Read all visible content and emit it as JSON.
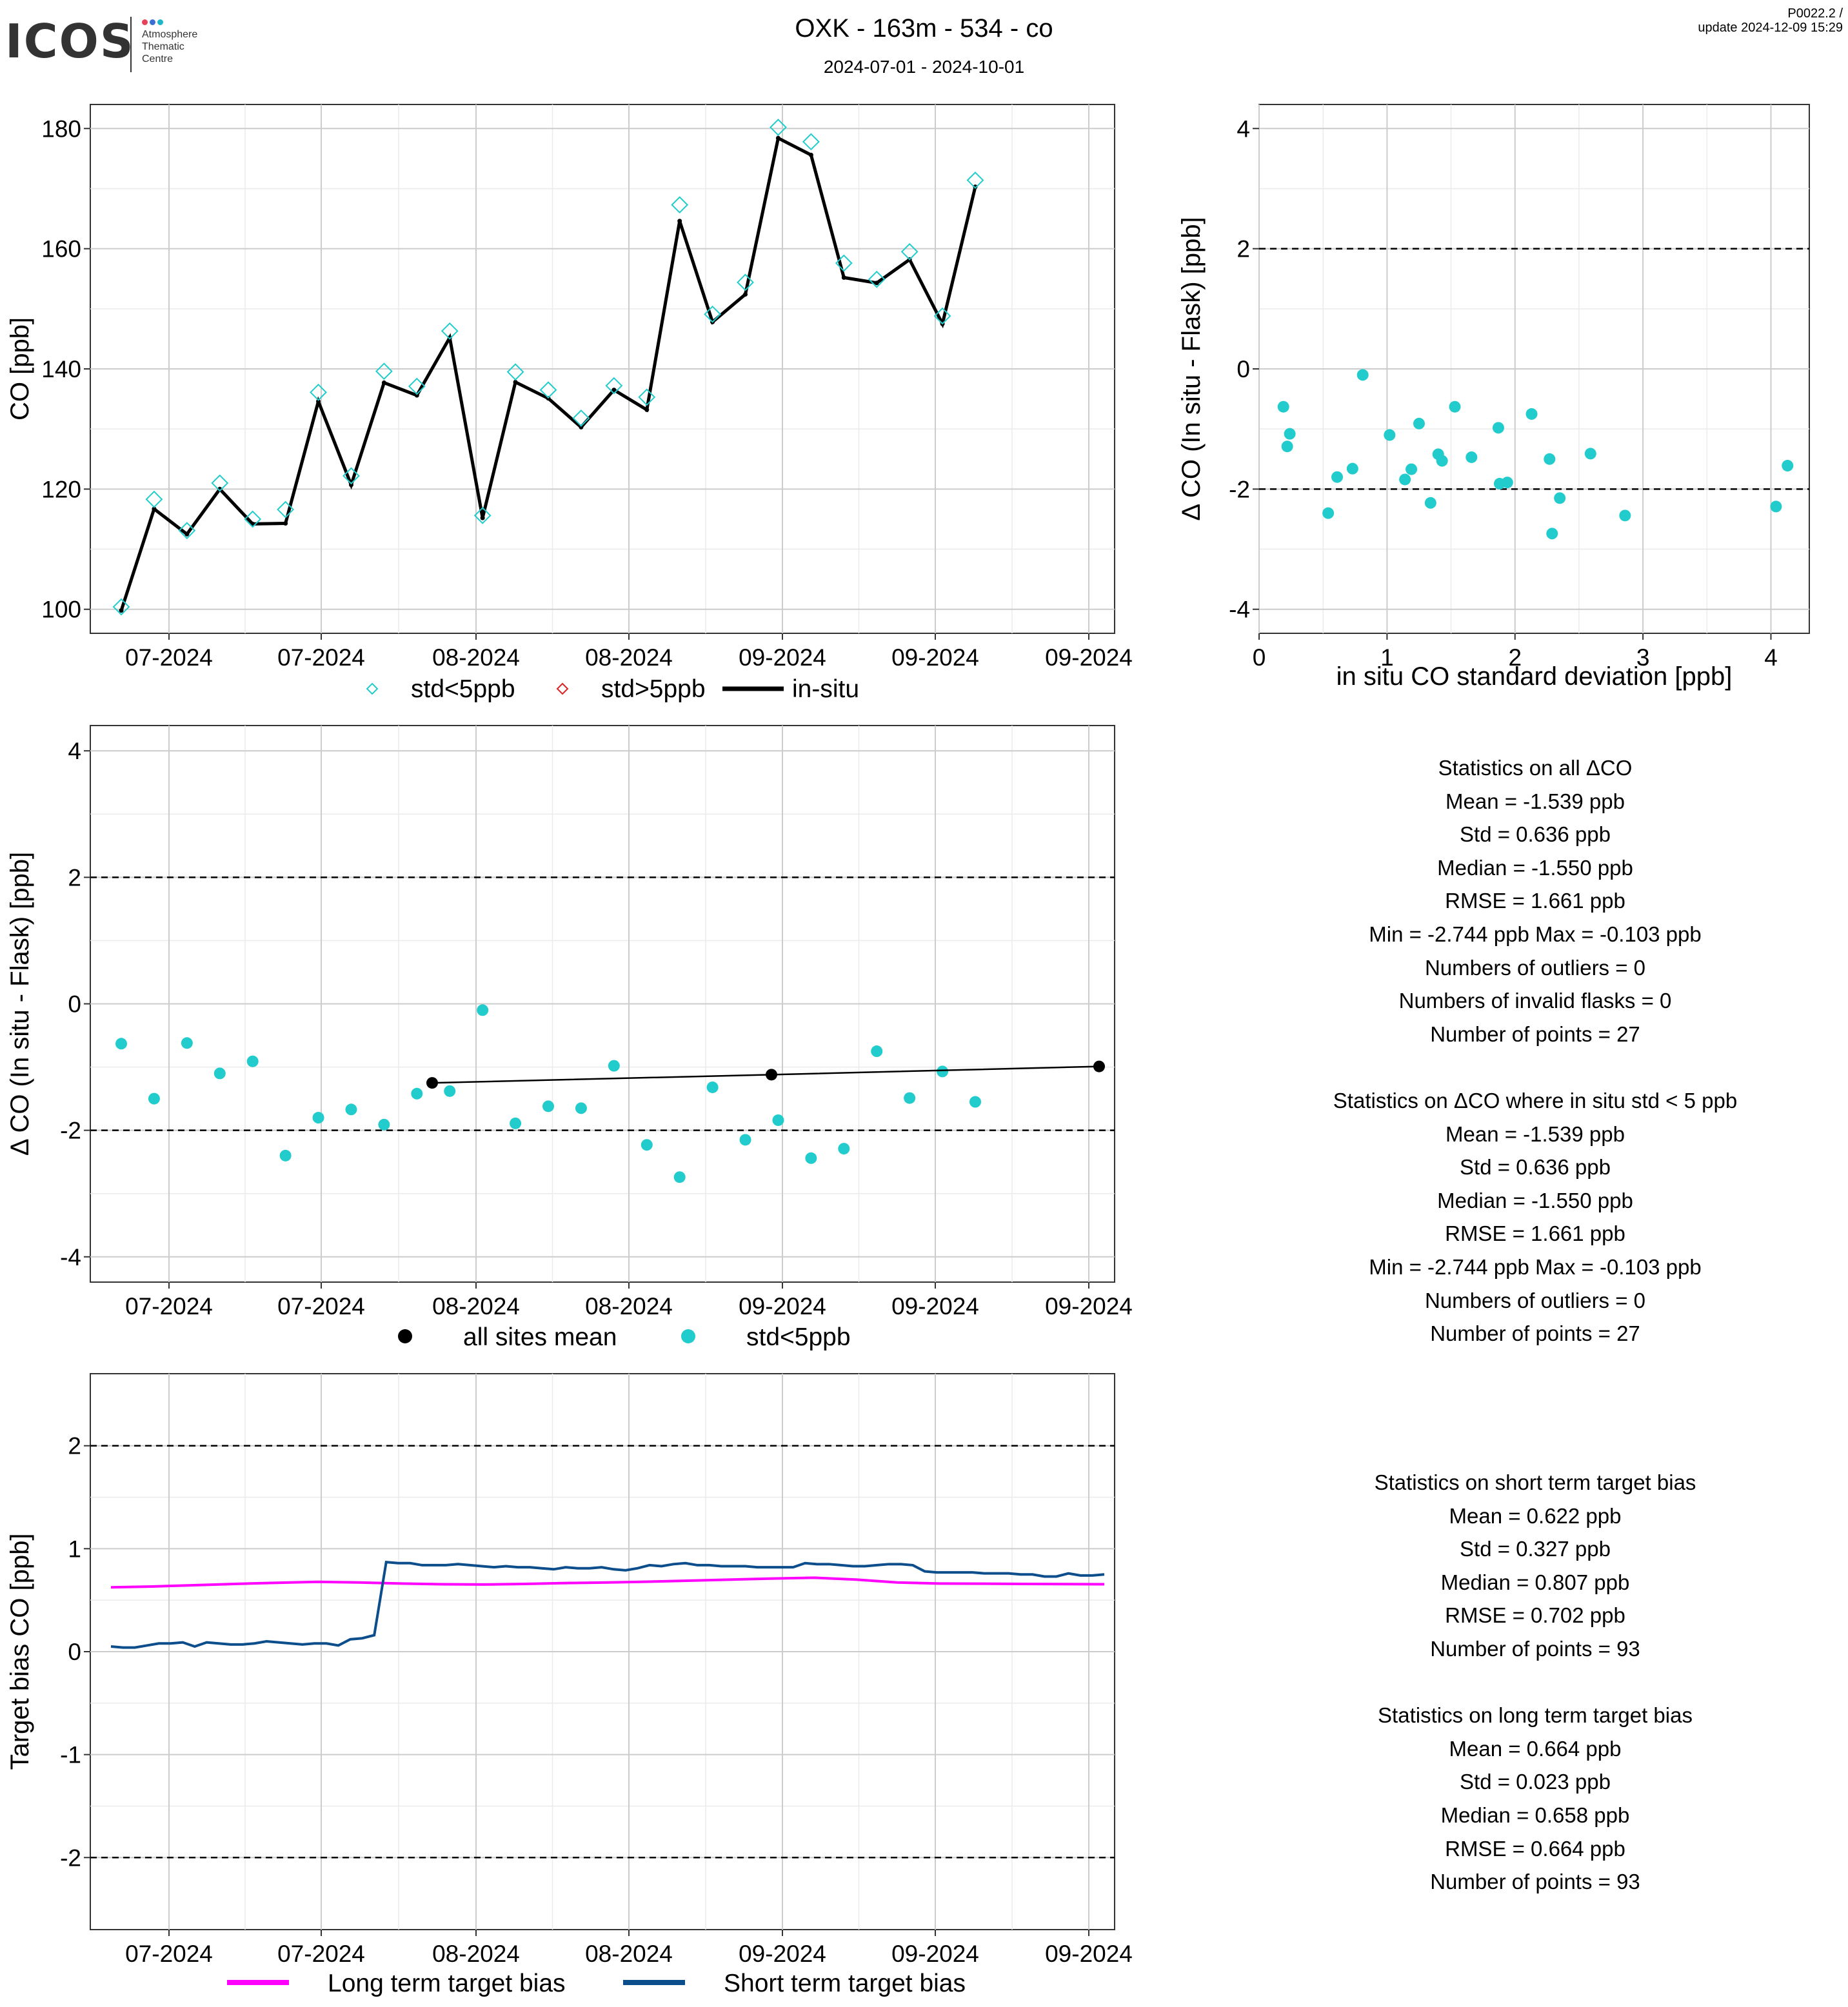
{
  "header": {
    "logo_text": "ICOS",
    "logo_sub": [
      "Atmosphere",
      "Thematic",
      "Centre"
    ],
    "logo_colors": [
      "#e8415c",
      "#3b6fd6",
      "#1cb5c9"
    ],
    "title": "OXK - 163m - 534 - co",
    "date_range": "2024-07-01 - 2024-10-01",
    "version": "P0022.2 /",
    "update": "update  2024-12-09 15:29"
  },
  "colors": {
    "cyan": "#22cccc",
    "red": "#dd2222",
    "black": "#000000",
    "magenta": "#ff00ff",
    "navy": "#0c4d8c",
    "grid_major": "#cccccc",
    "grid_minor": "#ebebeb"
  },
  "chart_data": [
    {
      "id": "timeseries",
      "type": "line",
      "ylabel": "CO [ppb]",
      "xlabel": "",
      "x_tick_labels": [
        "07-2024",
        "07-2024",
        "08-2024",
        "08-2024",
        "09-2024",
        "09-2024",
        "09-2024"
      ],
      "y_ticks": [
        100,
        120,
        140,
        160,
        180
      ],
      "ylim": [
        96,
        184
      ],
      "legend": [
        "std<5ppb",
        "std>5ppb",
        "in-situ"
      ],
      "legend_position": "bottom",
      "series": [
        {
          "name": "std<5ppb",
          "marker": "diamond",
          "values": [
            100.4,
            118.3,
            113.1,
            121.0,
            115.0,
            116.6,
            136.1,
            122.2,
            139.6,
            137.1,
            146.3,
            115.6,
            139.5,
            136.5,
            131.8,
            137.2,
            135.3,
            167.3,
            149.1,
            154.4,
            180.2,
            177.8,
            157.6,
            154.9,
            159.5,
            148.8,
            171.4
          ]
        },
        {
          "name": "in-situ",
          "values": [
            99.8,
            116.7,
            112.5,
            120.0,
            114.2,
            114.3,
            134.6,
            120.7,
            137.7,
            135.6,
            145.2,
            115.2,
            137.8,
            135.1,
            130.3,
            136.5,
            133.2,
            164.6,
            147.8,
            152.4,
            178.4,
            175.6,
            155.2,
            154.3,
            158.2,
            147.5,
            170.3
          ]
        }
      ]
    },
    {
      "id": "delta_vs_std",
      "type": "scatter",
      "xlabel": "in situ CO standard deviation [ppb]",
      "ylabel": "Δ CO (In situ - Flask) [ppb]",
      "x_ticks": [
        0,
        1,
        2,
        3,
        4
      ],
      "y_ticks": [
        -4,
        -2,
        0,
        2,
        4
      ],
      "xlim": [
        0,
        4.3
      ],
      "ylim": [
        -4.4,
        4.4
      ],
      "reference_lines": [
        2,
        -2
      ],
      "points": [
        [
          0.19,
          -0.63
        ],
        [
          0.22,
          -1.29
        ],
        [
          0.24,
          -1.08
        ],
        [
          0.54,
          -2.4
        ],
        [
          0.61,
          -1.8
        ],
        [
          0.73,
          -1.66
        ],
        [
          0.81,
          -0.1
        ],
        [
          1.02,
          -1.1
        ],
        [
          1.14,
          -1.84
        ],
        [
          1.19,
          -1.67
        ],
        [
          1.25,
          -0.91
        ],
        [
          1.34,
          -2.23
        ],
        [
          1.4,
          -1.42
        ],
        [
          1.43,
          -1.53
        ],
        [
          1.53,
          -0.63
        ],
        [
          1.66,
          -1.47
        ],
        [
          1.87,
          -0.98
        ],
        [
          1.88,
          -1.91
        ],
        [
          1.94,
          -1.89
        ],
        [
          2.13,
          -0.75
        ],
        [
          2.27,
          -1.5
        ],
        [
          2.29,
          -2.74
        ],
        [
          2.35,
          -2.15
        ],
        [
          2.59,
          -1.41
        ],
        [
          2.86,
          -2.44
        ],
        [
          4.04,
          -2.29
        ],
        [
          4.13,
          -1.61
        ]
      ]
    },
    {
      "id": "delta_timeseries",
      "type": "scatter",
      "ylabel": "Δ CO (In situ - Flask) [ppb]",
      "xlabel": "",
      "x_tick_labels": [
        "07-2024",
        "07-2024",
        "08-2024",
        "08-2024",
        "09-2024",
        "09-2024",
        "09-2024"
      ],
      "y_ticks": [
        -4,
        -2,
        0,
        2,
        4
      ],
      "ylim": [
        -4.4,
        4.4
      ],
      "reference_lines": [
        2,
        -2
      ],
      "legend": [
        "all sites mean",
        "std<5ppb"
      ],
      "legend_position": "bottom",
      "series": [
        {
          "name": "std<5ppb",
          "values": [
            -0.63,
            -1.5,
            -0.62,
            -1.1,
            -0.91,
            -2.4,
            -1.8,
            -1.67,
            -1.91,
            -1.42,
            -1.38,
            -0.1,
            -1.89,
            -1.62,
            -1.65,
            -0.98,
            -2.23,
            -2.74,
            -1.32,
            -2.15,
            -1.84,
            -2.44,
            -2.29,
            -0.75,
            -1.49,
            -1.07,
            -1.55
          ]
        },
        {
          "name": "all sites mean",
          "values": [
            -1.25,
            -1.12,
            -0.99
          ]
        }
      ]
    },
    {
      "id": "target_bias",
      "type": "line",
      "ylabel": "Target bias CO [ppb]",
      "xlabel": "",
      "x_tick_labels": [
        "07-2024",
        "07-2024",
        "08-2024",
        "08-2024",
        "09-2024",
        "09-2024",
        "09-2024"
      ],
      "y_ticks": [
        -2,
        -1,
        0,
        1,
        2
      ],
      "ylim": [
        -2.7,
        2.7
      ],
      "reference_lines": [
        2,
        -2
      ],
      "legend": [
        "Long term target bias",
        "Short term target bias"
      ],
      "legend_position": "bottom",
      "series": [
        {
          "name": "Long term target bias",
          "values": [
            0.625,
            0.633,
            0.645,
            0.658,
            0.669,
            0.678,
            0.672,
            0.662,
            0.655,
            0.652,
            0.658,
            0.666,
            0.672,
            0.68,
            0.69,
            0.7,
            0.71,
            0.718,
            0.7,
            0.672,
            0.662,
            0.66,
            0.658,
            0.656,
            0.655
          ]
        },
        {
          "name": "Short term target bias",
          "values": [
            0.05,
            0.04,
            0.04,
            0.06,
            0.08,
            0.08,
            0.09,
            0.05,
            0.09,
            0.08,
            0.07,
            0.07,
            0.08,
            0.1,
            0.09,
            0.08,
            0.07,
            0.08,
            0.08,
            0.06,
            0.12,
            0.13,
            0.16,
            0.87,
            0.86,
            0.86,
            0.84,
            0.84,
            0.84,
            0.85,
            0.84,
            0.83,
            0.82,
            0.83,
            0.82,
            0.82,
            0.81,
            0.8,
            0.82,
            0.81,
            0.81,
            0.82,
            0.8,
            0.79,
            0.81,
            0.84,
            0.83,
            0.85,
            0.86,
            0.84,
            0.84,
            0.83,
            0.83,
            0.83,
            0.82,
            0.82,
            0.82,
            0.82,
            0.86,
            0.85,
            0.85,
            0.84,
            0.83,
            0.83,
            0.84,
            0.85,
            0.85,
            0.84,
            0.78,
            0.77,
            0.77,
            0.77,
            0.77,
            0.76,
            0.76,
            0.76,
            0.75,
            0.75,
            0.73,
            0.73,
            0.76,
            0.74,
            0.74,
            0.75
          ]
        }
      ]
    }
  ],
  "stats_all": {
    "heading": "Statistics on all ΔCO",
    "mean": "Mean =  -1.539 ppb",
    "std": "Std =  0.636 ppb",
    "median": "Median =  -1.550 ppb",
    "rmse": "RMSE =  1.661 ppb",
    "minmax": "Min =  -2.744 ppb Max =  -0.103 ppb",
    "outliers": "Numbers of outliers =  0",
    "invalid": "Numbers of invalid flasks =  0",
    "points": "Number of points =  27"
  },
  "stats_insitu": {
    "heading": "Statistics on ΔCO where in situ std < 5 ppb",
    "mean": "Mean =  -1.539 ppb",
    "std": "Std =  0.636 ppb",
    "median": "Median =  -1.550 ppb",
    "rmse": "RMSE =  1.661 ppb",
    "minmax": "Min =  -2.744 ppb Max =  -0.103 ppb",
    "outliers": "Numbers of outliers =  0",
    "points": "Number of points =  27"
  },
  "stats_short": {
    "heading": "Statistics on short term target bias",
    "mean": "Mean =  0.622 ppb",
    "std": "Std =  0.327 ppb",
    "median": "Median =  0.807 ppb",
    "rmse": "RMSE =  0.702 ppb",
    "points": "Number of points =  93"
  },
  "stats_long": {
    "heading": "Statistics on long term target bias",
    "mean": "Mean =  0.664 ppb",
    "std": "Std =  0.023 ppb",
    "median": "Median =  0.658 ppb",
    "rmse": "RMSE =  0.664 ppb",
    "points": "Number of points =  93"
  }
}
